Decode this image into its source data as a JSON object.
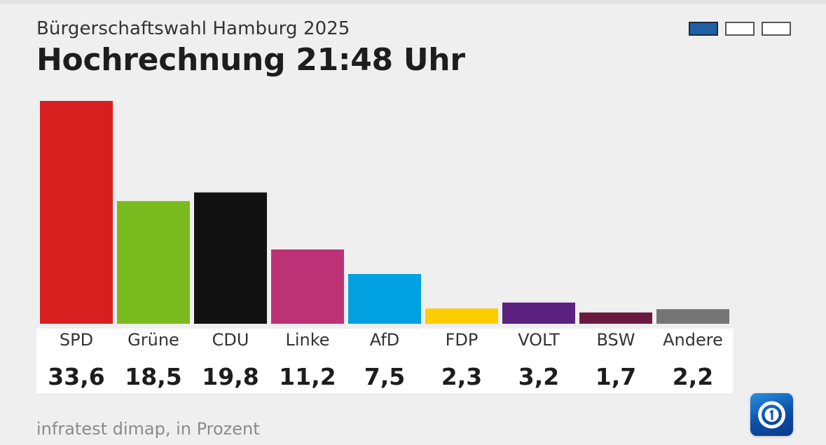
{
  "header": {
    "subtitle": "Bürgerschaftswahl Hamburg 2025",
    "title": "Hochrechnung 21:48 Uhr"
  },
  "pager": {
    "count": 3,
    "active_index": 0
  },
  "footnote": "infratest dimap, in Prozent",
  "logo": {
    "icon": "ard-tagesschau-logo-icon"
  },
  "chart_data": {
    "type": "bar",
    "title": "Hochrechnung 21:48 Uhr",
    "subtitle": "Bürgerschaftswahl Hamburg 2025",
    "categories": [
      "SPD",
      "Grüne",
      "CDU",
      "Linke",
      "AfD",
      "FDP",
      "VOLT",
      "BSW",
      "Andere"
    ],
    "values": [
      33.6,
      18.5,
      19.8,
      11.2,
      7.5,
      2.3,
      3.2,
      1.7,
      2.2
    ],
    "value_labels": [
      "33,6",
      "18,5",
      "19,8",
      "11,2",
      "7,5",
      "2,3",
      "3,2",
      "1,7",
      "2,2"
    ],
    "colors": [
      "#d71f1f",
      "#79bb1e",
      "#121212",
      "#bd3274",
      "#00a0e1",
      "#ffcc00",
      "#5a2180",
      "#6b1a3f",
      "#757575"
    ],
    "xlabel": "",
    "ylabel": "",
    "ylim": [
      0,
      33.6
    ],
    "grid": false,
    "legend": "none"
  }
}
